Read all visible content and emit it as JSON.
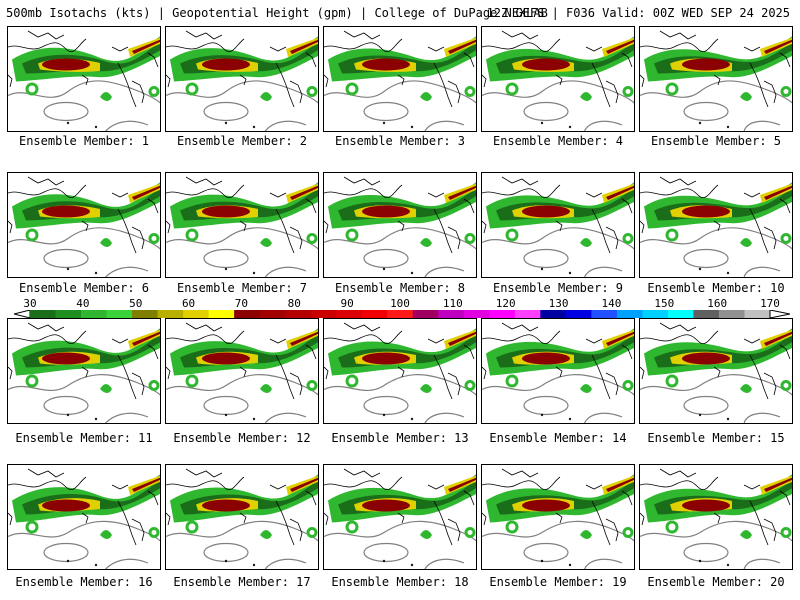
{
  "header": {
    "left_title": "500mb Isotachs (kts) | Geopotential Height (gpm) | College of DuPage NEXLAB",
    "right_title": "12Z GEFS | F036 Valid: 00Z WED SEP 24 2025"
  },
  "members": [
    {
      "label": "Ensemble Member: 1"
    },
    {
      "label": "Ensemble Member: 2"
    },
    {
      "label": "Ensemble Member: 3"
    },
    {
      "label": "Ensemble Member: 4"
    },
    {
      "label": "Ensemble Member: 5"
    },
    {
      "label": "Ensemble Member: 6"
    },
    {
      "label": "Ensemble Member: 7"
    },
    {
      "label": "Ensemble Member: 8"
    },
    {
      "label": "Ensemble Member: 9"
    },
    {
      "label": "Ensemble Member: 10"
    },
    {
      "label": "Ensemble Member: 11"
    },
    {
      "label": "Ensemble Member: 12"
    },
    {
      "label": "Ensemble Member: 13"
    },
    {
      "label": "Ensemble Member: 14"
    },
    {
      "label": "Ensemble Member: 15"
    },
    {
      "label": "Ensemble Member: 16"
    },
    {
      "label": "Ensemble Member: 17"
    },
    {
      "label": "Ensemble Member: 18"
    },
    {
      "label": "Ensemble Member: 19"
    },
    {
      "label": "Ensemble Member: 20"
    }
  ],
  "colorbar": {
    "ticks": [
      "30",
      "40",
      "50",
      "60",
      "70",
      "80",
      "90",
      "100",
      "110",
      "120",
      "130",
      "140",
      "150",
      "160",
      "170"
    ],
    "colors": [
      "#1a6e1a",
      "#1f8f1f",
      "#2fb82f",
      "#3ad43a",
      "#808000",
      "#b8b000",
      "#e0d000",
      "#ffff00",
      "#8b0000",
      "#a00000",
      "#b40000",
      "#c80000",
      "#dc0000",
      "#f00000",
      "#ff1a1a",
      "#a00060",
      "#c000c0",
      "#e000e0",
      "#ff00ff",
      "#ff40ff",
      "#0000a0",
      "#0000e0",
      "#2050ff",
      "#00a0ff",
      "#00d0ff",
      "#00ffff",
      "#606060",
      "#909090",
      "#c0c0c0"
    ]
  },
  "map_colors": {
    "jet_light": "#2fb82f",
    "jet_mid": "#1a6e1a",
    "jet_yellow": "#e0d000",
    "jet_core": "#8b0000",
    "height_contour": "#808080",
    "coastline": "#000000"
  }
}
